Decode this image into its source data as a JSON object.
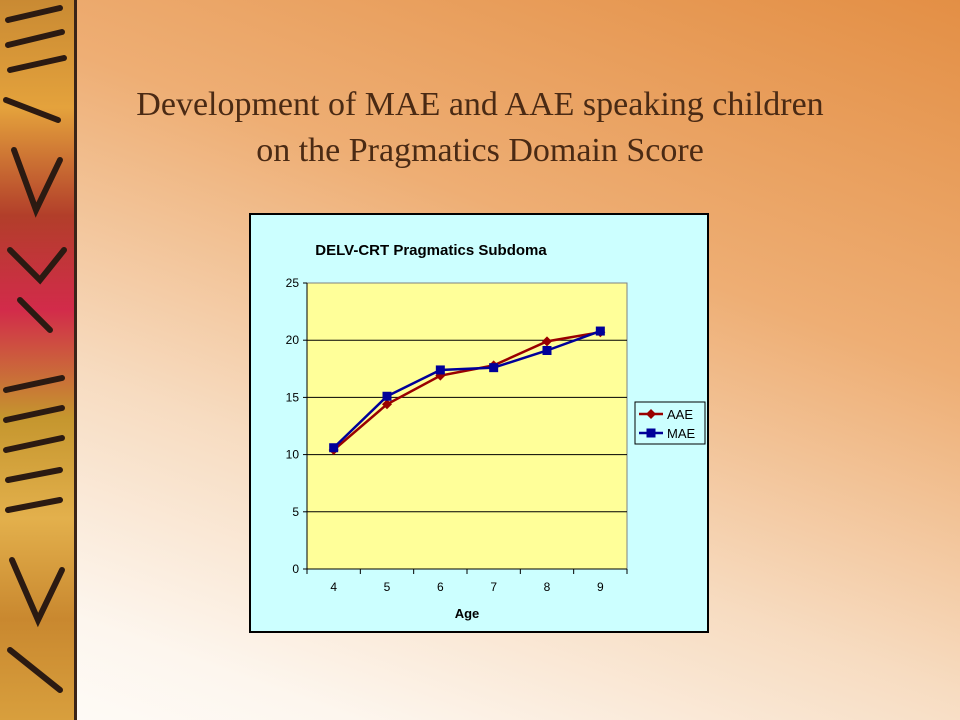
{
  "slide": {
    "title_line1": "Development of MAE and AAE speaking children",
    "title_line2": "on the Pragmatics Domain Score"
  },
  "colors": {
    "plot_background": "#ffff99",
    "chart_background": "#ccffff",
    "aae": "#990000",
    "mae": "#000099"
  },
  "chart_data": {
    "type": "line",
    "title": "DELV-CRT Pragmatics Subdoma",
    "xlabel": "Age",
    "ylabel": "",
    "categories": [
      "4",
      "5",
      "6",
      "7",
      "8",
      "9"
    ],
    "ylim": [
      0,
      25
    ],
    "yticks": [
      0,
      5,
      10,
      15,
      20,
      25
    ],
    "grid": true,
    "legend": "right",
    "series": [
      {
        "name": "AAE",
        "marker": "diamond",
        "values": [
          10.4,
          14.4,
          16.9,
          17.8,
          19.9,
          20.7
        ]
      },
      {
        "name": "MAE",
        "marker": "square",
        "values": [
          10.6,
          15.1,
          17.4,
          17.6,
          19.1,
          20.8
        ]
      }
    ]
  }
}
